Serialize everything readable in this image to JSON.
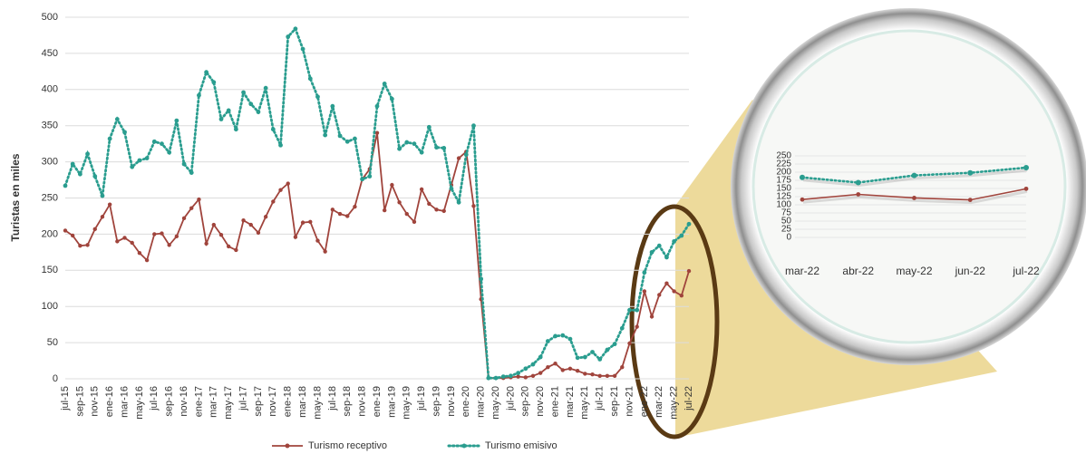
{
  "chart_data": [
    {
      "type": "line",
      "y_label": "Turistas en miles",
      "categories": [
        "jul-15",
        null,
        "sep-15",
        null,
        "nov-15",
        null,
        "ene-16",
        null,
        "mar-16",
        null,
        "may-16",
        null,
        "jul-16",
        null,
        "sep-16",
        null,
        "nov-16",
        null,
        "ene-17",
        null,
        "mar-17",
        null,
        "may-17",
        null,
        "jul-17",
        null,
        "sep-17",
        null,
        "nov-17",
        null,
        "ene-18",
        null,
        "mar-18",
        null,
        "may-18",
        null,
        "jul-18",
        null,
        "sep-18",
        null,
        "nov-18",
        null,
        "ene-19",
        null,
        "mar-19",
        null,
        "may-19",
        null,
        "jul-19",
        null,
        "sep-19",
        null,
        "nov-19",
        null,
        "ene-20",
        null,
        "mar-20",
        null,
        "may-20",
        null,
        "jul-20",
        null,
        "sep-20",
        null,
        "nov-20",
        null,
        "ene-21",
        null,
        "mar-21",
        null,
        "may-21",
        null,
        "jul-21",
        null,
        "sep-21",
        null,
        "nov-21",
        null,
        "ene-22",
        null,
        "mar-22",
        null,
        "may-22",
        null,
        "jul-22"
      ],
      "series": [
        {
          "name": "Turismo receptivo",
          "color": "#a0443c",
          "style": "solid",
          "values": [
            205,
            198,
            184,
            185,
            207,
            224,
            241,
            190,
            195,
            188,
            174,
            164,
            200,
            201,
            185,
            197,
            222,
            236,
            248,
            187,
            213,
            199,
            183,
            178,
            219,
            213,
            202,
            224,
            245,
            261,
            270,
            196,
            216,
            217,
            191,
            176,
            234,
            228,
            225,
            238,
            276,
            290,
            340,
            233,
            268,
            244,
            228,
            217,
            262,
            242,
            234,
            232,
            268,
            305,
            314,
            239,
            110,
            1,
            1,
            1,
            2,
            3,
            2,
            4,
            8,
            16,
            21,
            12,
            14,
            11,
            7,
            6,
            4,
            4,
            4,
            16,
            49,
            72,
            121,
            86,
            116,
            132,
            121,
            115,
            149
          ]
        },
        {
          "name": "Turismo emisivo",
          "color": "#2a9d8f",
          "style": "dotted",
          "values": [
            267,
            297,
            283,
            311,
            280,
            253,
            332,
            359,
            341,
            293,
            302,
            305,
            328,
            325,
            313,
            357,
            297,
            285,
            392,
            424,
            410,
            359,
            371,
            345,
            396,
            380,
            369,
            402,
            345,
            323,
            473,
            484,
            456,
            415,
            390,
            337,
            377,
            336,
            328,
            332,
            276,
            280,
            377,
            408,
            387,
            318,
            327,
            325,
            313,
            348,
            320,
            319,
            263,
            244,
            310,
            350,
            138,
            1,
            1,
            3,
            4,
            8,
            14,
            20,
            30,
            52,
            59,
            60,
            55,
            29,
            30,
            37,
            27,
            40,
            48,
            70,
            95,
            95,
            147,
            175,
            184,
            168,
            190,
            198,
            214
          ]
        }
      ],
      "ylim": [
        0,
        500
      ],
      "yticks": [
        0,
        50,
        100,
        150,
        200,
        250,
        300,
        350,
        400,
        450,
        500
      ],
      "grid": true,
      "legend": "bottom"
    },
    {
      "type": "line",
      "categories": [
        "mar-22",
        "abr-22",
        "may-22",
        "jun-22",
        "jul-22"
      ],
      "series": [
        {
          "color": "#a0443c",
          "style": "solid",
          "values": [
            116,
            132,
            121,
            115,
            149
          ]
        },
        {
          "color": "#2a9d8f",
          "style": "dotted",
          "values": [
            184,
            168,
            190,
            198,
            214
          ]
        }
      ],
      "ylim": [
        0,
        250
      ],
      "yticks": [
        0,
        25,
        50,
        75,
        100,
        125,
        150,
        175,
        200,
        225,
        250
      ],
      "grid": true
    }
  ]
}
